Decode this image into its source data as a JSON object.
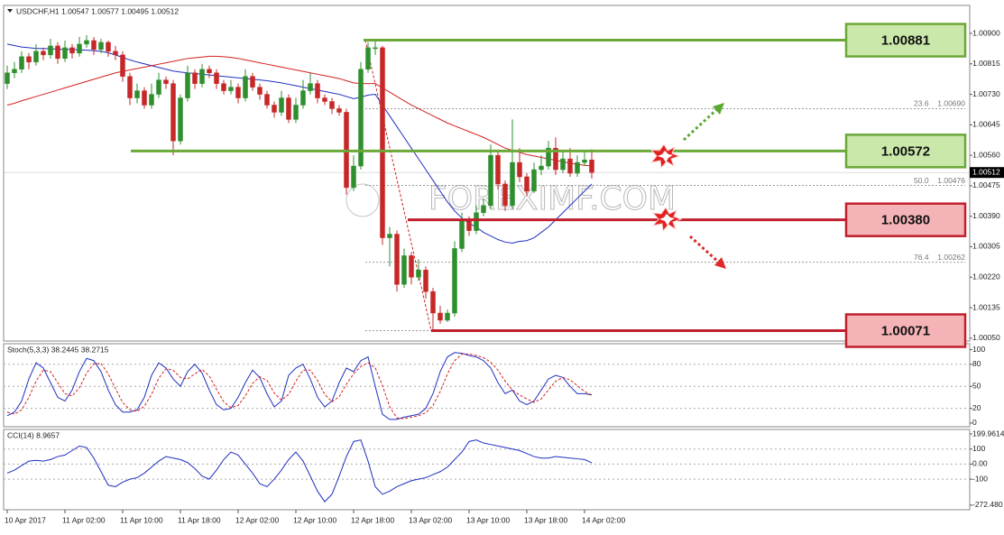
{
  "chart_data": [
    {
      "type": "candlestick",
      "title": "USDCHF,H1  1.00547 1.00577 1.00495 1.00512",
      "x": [
        "10 Apr 2017",
        null,
        null,
        null,
        null,
        null,
        null,
        null,
        "11 Apr 02:00",
        null,
        null,
        null,
        null,
        null,
        null,
        null,
        "11 Apr 10:00",
        null,
        null,
        null,
        null,
        null,
        null,
        null,
        "11 Apr 18:00",
        null,
        null,
        null,
        null,
        null,
        null,
        null,
        "12 Apr 02:00",
        null,
        null,
        null,
        null,
        null,
        null,
        null,
        "12 Apr 10:00",
        null,
        null,
        null,
        null,
        null,
        null,
        null,
        "12 Apr 18:00",
        null,
        null,
        null,
        null,
        null,
        null,
        null,
        "13 Apr 02:00",
        null,
        null,
        null,
        null,
        null,
        null,
        null,
        "13 Apr 10:00",
        null,
        null,
        null,
        null,
        null,
        null,
        null,
        "13 Apr 18:00",
        null,
        null,
        null,
        null,
        null,
        null,
        null,
        "14 Apr 02:00",
        null
      ],
      "open": [
        1.0076,
        1.0079,
        1.008,
        1.00835,
        1.0082,
        1.0085,
        1.0084,
        1.00865,
        1.0083,
        1.0086,
        1.00845,
        1.0087,
        1.0088,
        1.00855,
        1.00875,
        1.0085,
        1.0084,
        1.0078,
        1.0072,
        1.0074,
        1.007,
        1.0073,
        1.0077,
        1.0076,
        1.006,
        1.0072,
        1.0079,
        1.0076,
        1.008,
        1.0079,
        1.0076,
        1.0074,
        1.0075,
        1.0072,
        1.0078,
        1.0075,
        1.0073,
        1.007,
        1.0068,
        1.0072,
        1.0066,
        1.007,
        1.0074,
        1.0076,
        1.0072,
        1.0071,
        1.0069,
        1.0068,
        1.0047,
        1.0053,
        1.008,
        1.0086,
        1.0086,
        1.0033,
        1.0034,
        1.002,
        1.0028,
        1.0022,
        1.0024,
        1.0018,
        1.0012,
        1.001,
        1.0012,
        1.003,
        1.0038,
        1.0035,
        1.004,
        1.0042,
        1.0056,
        1.0048,
        1.0042,
        1.0054,
        1.005,
        1.0046,
        1.0052,
        1.0053,
        1.0058,
        1.0052,
        1.0055,
        1.0051,
        1.0054,
        1.00547
      ],
      "high": [
        1.0081,
        1.0082,
        1.0085,
        1.00845,
        1.0087,
        1.0086,
        1.00885,
        1.00875,
        1.0088,
        1.0087,
        1.0089,
        1.00895,
        1.0089,
        1.00885,
        1.0088,
        1.00865,
        1.0085,
        1.0079,
        1.0076,
        1.0075,
        1.0076,
        1.0079,
        1.0078,
        1.0077,
        1.0073,
        1.0081,
        1.008,
        1.00815,
        1.0081,
        1.008,
        1.0077,
        1.0077,
        1.0076,
        1.008,
        1.0079,
        1.0076,
        1.0074,
        1.0071,
        1.0074,
        1.0073,
        1.0072,
        1.0077,
        1.0079,
        1.0077,
        1.0073,
        1.0072,
        1.007,
        1.0069,
        1.0056,
        1.0082,
        1.00875,
        1.00881,
        1.00865,
        1.0036,
        1.0035,
        1.003,
        1.0029,
        1.0027,
        1.0025,
        1.0019,
        1.0014,
        1.0013,
        1.0032,
        1.004,
        1.0039,
        1.0042,
        1.0044,
        1.0059,
        1.0057,
        1.0049,
        1.0066,
        1.0058,
        1.0051,
        1.0054,
        1.0056,
        1.006,
        1.0061,
        1.0057,
        1.0058,
        1.0056,
        1.0057,
        1.00577
      ],
      "low": [
        1.00745,
        1.00775,
        1.0079,
        1.008,
        1.0081,
        1.00825,
        1.0083,
        1.00815,
        1.0082,
        1.0083,
        1.00835,
        1.0086,
        1.0084,
        1.00845,
        1.00835,
        1.00825,
        1.00765,
        1.007,
        1.00705,
        1.0069,
        1.0069,
        1.0072,
        1.00745,
        1.0056,
        1.0059,
        1.0071,
        1.00745,
        1.0075,
        1.00775,
        1.00745,
        1.0073,
        1.0073,
        1.00705,
        1.0071,
        1.0074,
        1.00715,
        1.0069,
        1.00665,
        1.0067,
        1.0065,
        1.0065,
        1.0069,
        1.0073,
        1.00705,
        1.007,
        1.00675,
        1.0067,
        1.0045,
        1.0046,
        1.0052,
        1.0079,
        1.0084,
        1.0031,
        1.0025,
        1.0018,
        1.0019,
        1.002,
        1.0021,
        1.0016,
        1.00071,
        1.0009,
        1.00095,
        1.0011,
        1.0029,
        1.00335,
        1.0034,
        1.0039,
        1.0041,
        1.00465,
        1.00405,
        1.0041,
        1.00485,
        1.00445,
        1.00455,
        1.00505,
        1.0052,
        1.00505,
        1.0051,
        1.005,
        1.005,
        1.0053,
        1.00495
      ],
      "close": [
        1.0079,
        1.008,
        1.00835,
        1.0082,
        1.0085,
        1.0084,
        1.00865,
        1.0083,
        1.0086,
        1.00845,
        1.0087,
        1.0088,
        1.00855,
        1.00875,
        1.0085,
        1.0084,
        1.0078,
        1.0072,
        1.0074,
        1.007,
        1.0073,
        1.0077,
        1.0076,
        1.006,
        1.0072,
        1.0079,
        1.0076,
        1.008,
        1.0079,
        1.0076,
        1.0074,
        1.0075,
        1.0072,
        1.0078,
        1.0075,
        1.0073,
        1.007,
        1.0068,
        1.0072,
        1.0066,
        1.007,
        1.0074,
        1.0076,
        1.0072,
        1.0071,
        1.0069,
        1.0068,
        1.0047,
        1.0053,
        1.008,
        1.0086,
        1.0086,
        1.0033,
        1.0034,
        1.002,
        1.0028,
        1.0022,
        1.0024,
        1.0018,
        1.0012,
        1.001,
        1.0012,
        1.003,
        1.0038,
        1.0035,
        1.004,
        1.0042,
        1.0056,
        1.0048,
        1.0042,
        1.0054,
        1.005,
        1.0046,
        1.0052,
        1.0053,
        1.0058,
        1.0052,
        1.0055,
        1.0051,
        1.0054,
        1.00547,
        1.00512
      ],
      "up_color": "#2f8f2f",
      "down_color": "#c62828",
      "series": [
        {
          "color": "#1f2fbf",
          "values": [
            1.0087,
            1.00866,
            1.00862,
            1.0086,
            1.00858,
            1.00858,
            1.00857,
            1.00856,
            1.00855,
            1.00855,
            1.00854,
            1.00853,
            1.00852,
            1.0085,
            1.00846,
            1.0084,
            1.00833,
            1.00826,
            1.0082,
            1.00815,
            1.0081,
            1.00805,
            1.008,
            1.00795,
            1.00792,
            1.0079,
            1.00788,
            1.00786,
            1.00784,
            1.00782,
            1.0078,
            1.00778,
            1.00776,
            1.00774,
            1.00772,
            1.0077,
            1.00768,
            1.00765,
            1.00762,
            1.00758,
            1.00754,
            1.0075,
            1.00746,
            1.00742,
            1.00738,
            1.00734,
            1.0073,
            1.00724,
            1.00718,
            1.00722,
            1.00728,
            1.0073,
            1.007,
            1.0067,
            1.0064,
            1.0061,
            1.0058,
            1.0055,
            1.0052,
            1.0049,
            1.0046,
            1.0043,
            1.00405,
            1.00385,
            1.0037,
            1.0036,
            1.00345,
            1.00335,
            1.00325,
            1.00318,
            1.00315,
            1.0032,
            1.00322,
            1.0033,
            1.00345,
            1.0036,
            1.0038,
            1.004,
            1.0042,
            1.0044,
            1.0046,
            1.0048
          ]
        },
        {
          "color": "#d42020",
          "values": [
            1.007,
            1.00705,
            1.00712,
            1.00718,
            1.00724,
            1.0073,
            1.00736,
            1.00742,
            1.00748,
            1.00754,
            1.0076,
            1.00766,
            1.00772,
            1.00778,
            1.00784,
            1.0079,
            1.00794,
            1.00798,
            1.00802,
            1.00806,
            1.0081,
            1.00814,
            1.00818,
            1.00822,
            1.00826,
            1.0083,
            1.00832,
            1.00834,
            1.00836,
            1.00836,
            1.00835,
            1.00833,
            1.0083,
            1.00826,
            1.00822,
            1.00818,
            1.00814,
            1.0081,
            1.00806,
            1.00802,
            1.00798,
            1.00794,
            1.0079,
            1.00786,
            1.00782,
            1.00778,
            1.00774,
            1.00768,
            1.00762,
            1.0076,
            1.0076,
            1.0076,
            1.00748,
            1.00736,
            1.00724,
            1.00712,
            1.007,
            1.0069,
            1.0068,
            1.0067,
            1.0066,
            1.0065,
            1.00642,
            1.00634,
            1.00626,
            1.00618,
            1.0061,
            1.006,
            1.0059,
            1.0058,
            1.00574,
            1.00568,
            1.00562,
            1.00558,
            1.00554,
            1.0055,
            1.00546,
            1.00542,
            1.00538,
            1.00535,
            1.00532,
            1.0053
          ]
        }
      ],
      "levels": [
        {
          "value": 1.00881,
          "label": "1.00881",
          "color": "#6aa838",
          "fill": "#c9e8a9"
        },
        {
          "value": 1.00572,
          "label": "1.00572",
          "color": "#6aa838",
          "fill": "#c9e8a9"
        },
        {
          "value": 1.0038,
          "label": "1.00380",
          "color": "#c01f2c",
          "fill": "#f4b3b6"
        },
        {
          "value": 1.00071,
          "label": "1.00071",
          "color": "#c01f2c",
          "fill": "#f4b3b6"
        }
      ],
      "fib": [
        {
          "level": "23.6",
          "value": 1.0069,
          "value_label": "1.00690"
        },
        {
          "level": "50.0",
          "value": 1.00476,
          "value_label": "1.00476"
        },
        {
          "level": "76.4",
          "value": 1.00262,
          "value_label": "1.00262"
        }
      ],
      "last": 1.00512,
      "watermark": "FOREXIMF.COM",
      "ylim": [
        1.00042,
        1.00978
      ],
      "yticks": [
        {
          "value": 1.009,
          "label": "1.00900"
        },
        {
          "value": 1.00815,
          "label": "1.00815"
        },
        {
          "value": 1.0073,
          "label": "1.00730"
        },
        {
          "value": 1.00645,
          "label": "1.00645"
        },
        {
          "value": 1.0056,
          "label": "1.00560"
        },
        {
          "value": 1.00475,
          "label": "1.00475"
        },
        {
          "value": 1.0039,
          "label": "1.00390"
        },
        {
          "value": 1.00305,
          "label": "1.00305"
        },
        {
          "value": 1.0022,
          "label": "1.00220"
        },
        {
          "value": 1.00135,
          "label": "1.00135"
        },
        {
          "value": 1.0005,
          "label": "1.00050"
        }
      ],
      "grid": false
    },
    {
      "type": "line",
      "title": "Stoch(5,3,3) 38.2445 38.2715",
      "series": [
        {
          "color": "#1f2fbf",
          "dash": false,
          "values": [
            10,
            15,
            30,
            60,
            82,
            75,
            55,
            35,
            30,
            45,
            70,
            88,
            85,
            70,
            45,
            25,
            15,
            15,
            18,
            35,
            65,
            82,
            75,
            60,
            50,
            70,
            80,
            68,
            45,
            25,
            18,
            20,
            35,
            55,
            72,
            62,
            40,
            22,
            30,
            65,
            75,
            80,
            60,
            35,
            22,
            30,
            55,
            75,
            70,
            85,
            90,
            50,
            12,
            5,
            5,
            8,
            10,
            12,
            20,
            40,
            70,
            90,
            96,
            95,
            92,
            90,
            85,
            75,
            55,
            40,
            45,
            30,
            25,
            30,
            45,
            60,
            65,
            62,
            50,
            40,
            40,
            38.2445
          ]
        },
        {
          "color": "#d42020",
          "dash": true,
          "values": [
            15,
            12,
            18,
            35,
            57,
            72,
            70,
            55,
            40,
            37,
            48,
            68,
            81,
            81,
            67,
            47,
            28,
            18,
            16,
            23,
            39,
            61,
            74,
            72,
            62,
            60,
            67,
            73,
            64,
            46,
            29,
            21,
            24,
            37,
            54,
            63,
            58,
            41,
            31,
            39,
            57,
            72,
            72,
            58,
            39,
            29,
            36,
            53,
            67,
            77,
            82,
            75,
            51,
            22,
            7,
            6,
            8,
            10,
            14,
            24,
            43,
            67,
            85,
            94,
            94,
            92,
            89,
            83,
            72,
            57,
            45,
            38,
            33,
            28,
            33,
            45,
            57,
            62,
            59,
            51,
            43,
            38.2715
          ]
        }
      ],
      "ylim": [
        -5,
        108
      ],
      "yticks": [
        100,
        80,
        50,
        20,
        0
      ],
      "grid": true
    },
    {
      "type": "line",
      "title": "CCI(14) 8.9657",
      "series": [
        {
          "color": "#1f2fbf",
          "dash": false,
          "values": [
            -60,
            -40,
            -10,
            20,
            25,
            20,
            30,
            50,
            60,
            90,
            120,
            110,
            40,
            -50,
            -140,
            -150,
            -120,
            -100,
            -90,
            -60,
            -20,
            20,
            50,
            40,
            30,
            10,
            -30,
            -80,
            -100,
            -40,
            30,
            80,
            60,
            0,
            -60,
            -130,
            -150,
            -100,
            -40,
            30,
            80,
            20,
            -80,
            -180,
            -250,
            -200,
            -80,
            50,
            150,
            160,
            20,
            -150,
            -200,
            -180,
            -150,
            -130,
            -110,
            -100,
            -90,
            -70,
            -50,
            -20,
            30,
            80,
            150,
            160,
            140,
            130,
            120,
            110,
            100,
            90,
            70,
            50,
            40,
            40,
            50,
            45,
            40,
            35,
            30,
            8.9657
          ]
        }
      ],
      "ylim": [
        -303,
        230
      ],
      "yticks": [
        199.9614,
        100,
        {
          "value": 0,
          "label": "0.00"
        },
        -100,
        {
          "value": -272.48,
          "label": "-272.480"
        }
      ],
      "grid": true
    }
  ]
}
